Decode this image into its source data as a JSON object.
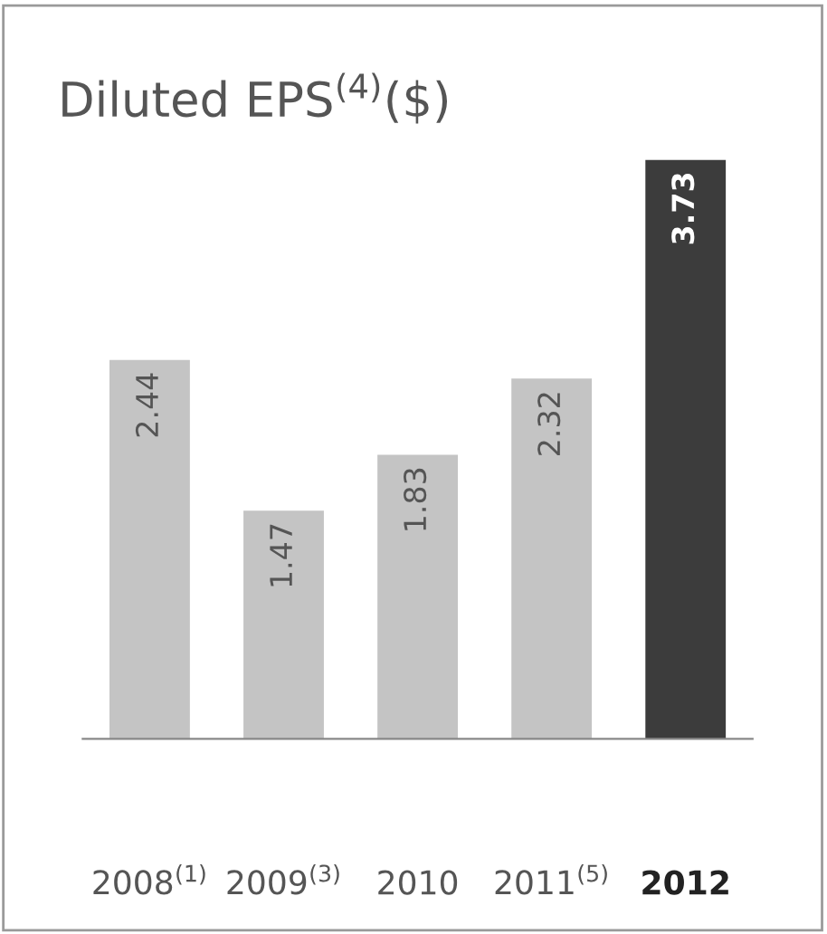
{
  "chart_data": {
    "type": "bar",
    "title": "Diluted EPS$^{(4)}$($)",
    "categories": [
      "2008$^{(1)}$",
      "2009$^{(3)}$",
      "2010",
      "2011$^{(5)}$",
      "2012"
    ],
    "values": [
      2.44,
      1.47,
      1.83,
      2.32,
      3.73
    ],
    "colors": [
      "#c4c4c4",
      "#c4c4c4",
      "#c4c4c4",
      "#c4c4c4",
      "#3c3c3c"
    ],
    "data_labels": true,
    "grid": false,
    "legend": false
  }
}
